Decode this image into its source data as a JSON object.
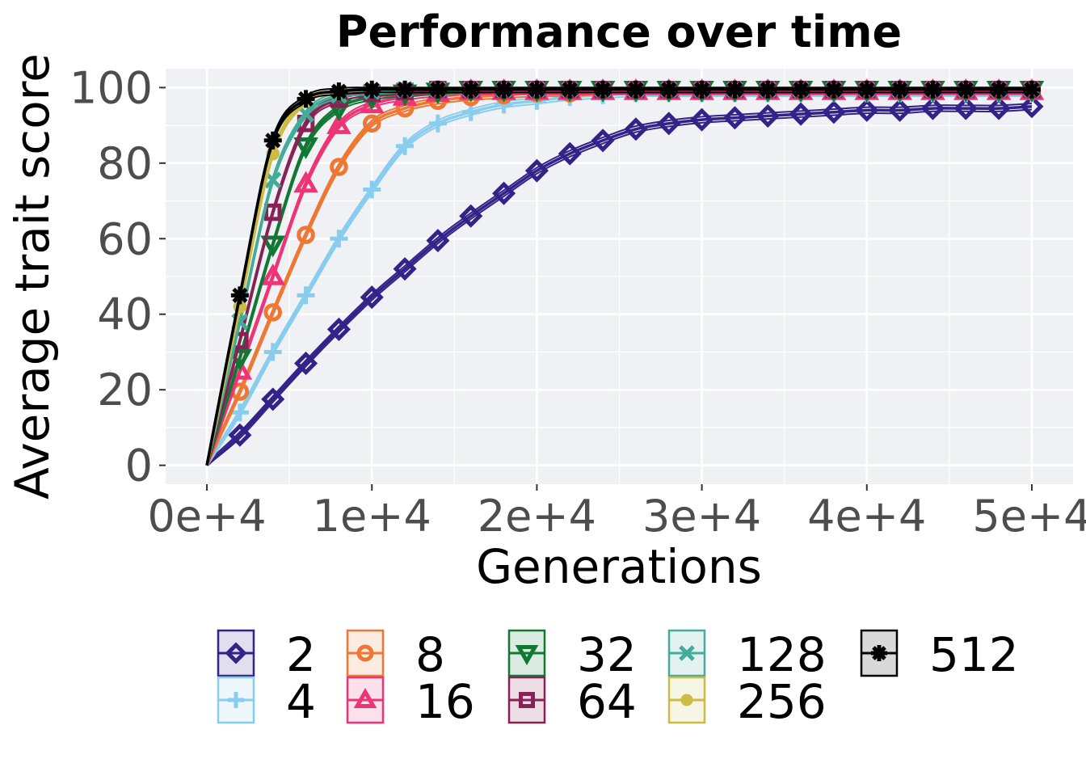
{
  "chart_data": {
    "type": "line",
    "title": "Performance over time",
    "xlabel": "Generations",
    "ylabel": "Average trait score",
    "xlim": [
      -2500,
      52500
    ],
    "ylim": [
      -5,
      105
    ],
    "x_ticks": [
      0,
      10000,
      20000,
      30000,
      40000,
      50000
    ],
    "x_tick_labels": [
      "0e+4",
      "1e+4",
      "2e+4",
      "3e+4",
      "4e+4",
      "5e+4"
    ],
    "y_ticks": [
      0,
      20,
      40,
      60,
      80,
      100
    ],
    "y_tick_labels": [
      "0",
      "20",
      "40",
      "60",
      "80",
      "100"
    ],
    "grid": true,
    "legend_position": "bottom",
    "background": "#f0f1f5",
    "x": [
      0,
      2000,
      4000,
      6000,
      8000,
      10000,
      12000,
      14000,
      16000,
      18000,
      20000,
      22000,
      24000,
      26000,
      28000,
      30000,
      32000,
      34000,
      36000,
      38000,
      40000,
      42000,
      44000,
      46000,
      48000,
      50000
    ],
    "series": [
      {
        "name": "2",
        "color": "#332288",
        "marker": "diamond",
        "values": [
          0,
          8,
          17.5,
          27,
          36,
          44.5,
          52,
          59.5,
          66,
          72,
          78,
          82.5,
          86,
          89,
          90.5,
          91.5,
          92,
          92.5,
          93,
          93.5,
          94,
          94,
          94.5,
          94.5,
          94.5,
          95
        ]
      },
      {
        "name": "4",
        "color": "#88ccee",
        "marker": "plus",
        "values": [
          0,
          14,
          30,
          45,
          60,
          73,
          84.5,
          90.5,
          93.5,
          95.5,
          96.5,
          97.5,
          98,
          98.5,
          98.5,
          98.5,
          98.5,
          98.5,
          98.5,
          98.5,
          98.5,
          98.5,
          98.5,
          98.5,
          98.5,
          98.5
        ]
      },
      {
        "name": "8",
        "color": "#ee7733",
        "marker": "circle",
        "values": [
          0,
          19.5,
          40.5,
          61,
          79,
          90.5,
          94.5,
          96.5,
          97.5,
          98,
          98.5,
          98.5,
          99,
          99,
          99,
          99,
          99,
          99,
          99,
          99,
          99,
          99,
          99,
          99,
          99,
          99
        ]
      },
      {
        "name": "16",
        "color": "#ee3377",
        "marker": "triangle-up",
        "values": [
          0,
          25,
          50,
          74.5,
          90,
          95.5,
          97.5,
          98.5,
          99,
          99,
          99,
          99,
          99,
          99,
          99,
          99,
          99,
          99,
          99,
          99,
          99,
          99,
          99,
          99,
          99,
          99
        ]
      },
      {
        "name": "32",
        "color": "#117733",
        "marker": "triangle-down",
        "values": [
          0,
          28.5,
          58.5,
          84.5,
          94.5,
          97.5,
          98.5,
          99,
          99.5,
          99.5,
          99.5,
          99.5,
          99.5,
          99.5,
          99.5,
          99.5,
          99.5,
          99.5,
          99.5,
          99.5,
          99.5,
          99.5,
          99.5,
          99.5,
          99.5,
          99.5
        ]
      },
      {
        "name": "64",
        "color": "#882255",
        "marker": "square",
        "values": [
          0,
          33,
          67,
          90.5,
          97,
          98.5,
          99,
          99.5,
          99.5,
          99.5,
          99.5,
          99.5,
          99.5,
          99.5,
          99.5,
          99.5,
          99.5,
          99.5,
          99.5,
          99.5,
          99.5,
          99.5,
          99.5,
          99.5,
          99.5,
          99.5
        ]
      },
      {
        "name": "128",
        "color": "#44aa99",
        "marker": "x",
        "values": [
          0,
          38,
          75.5,
          93,
          98,
          99,
          99.5,
          99.5,
          99.5,
          99.5,
          99.5,
          99.5,
          99.5,
          99.5,
          99.5,
          99.5,
          99.5,
          99.5,
          99.5,
          99.5,
          99.5,
          99.5,
          99.5,
          99.5,
          99.5,
          99.5
        ]
      },
      {
        "name": "256",
        "color": "#ccbb44",
        "marker": "dot",
        "values": [
          0,
          42,
          82.5,
          96.5,
          99,
          99.5,
          99.5,
          99.5,
          99.5,
          99.5,
          99.5,
          99.5,
          99.5,
          99.5,
          99.5,
          99.5,
          99.5,
          99.5,
          99.5,
          99.5,
          99.5,
          99.5,
          99.5,
          99.5,
          99.5,
          99.5
        ]
      },
      {
        "name": "512",
        "color": "#000000",
        "marker": "asterisk",
        "values": [
          0,
          45,
          86,
          97,
          99,
          99.5,
          99.5,
          99.5,
          99.5,
          99.5,
          99.5,
          99.5,
          99.5,
          99.5,
          99.5,
          99.5,
          99.5,
          99.5,
          99.5,
          99.5,
          99.5,
          99.5,
          99.5,
          99.5,
          99.5,
          99.5
        ]
      }
    ]
  }
}
